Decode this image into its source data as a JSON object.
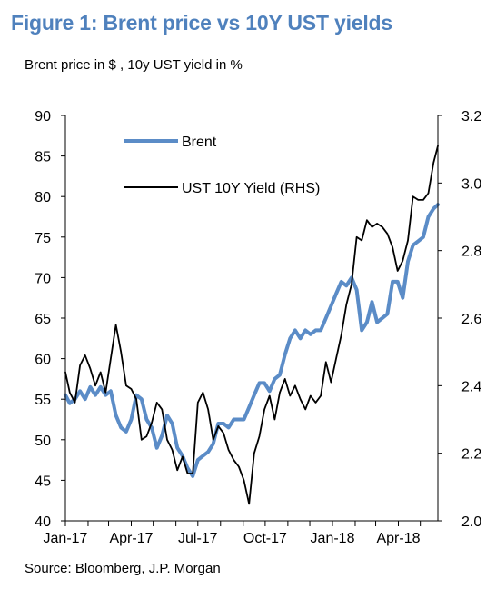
{
  "title": "Figure 1: Brent price vs 10Y UST yields",
  "subtitle": "Brent price in $ , 10y UST yield in %",
  "source": "Source: Bloomberg, J.P. Morgan",
  "chart_data": {
    "type": "line",
    "xlabel": "",
    "ylabel": "",
    "x_tick_labels": [
      "Jan-17",
      "Apr-17",
      "Jul-17",
      "Oct-17",
      "Jan-18",
      "Apr-18"
    ],
    "x_range": [
      "2017-01-01",
      "2018-05-25"
    ],
    "y_left": {
      "ticks": [
        40,
        45,
        50,
        55,
        60,
        65,
        70,
        75,
        80,
        85,
        90
      ],
      "range": [
        40,
        90
      ]
    },
    "y_right": {
      "ticks": [
        2.0,
        2.2,
        2.4,
        2.6,
        2.8,
        3.0,
        3.2
      ],
      "range": [
        2.0,
        3.2
      ]
    },
    "grid": false,
    "legend_position": "top-left",
    "series": [
      {
        "name": "Brent",
        "axis": "left",
        "color": "#5b8cc7",
        "points": [
          [
            "2017-01-01",
            55.5
          ],
          [
            "2017-01-07",
            54.5
          ],
          [
            "2017-01-14",
            55.0
          ],
          [
            "2017-01-21",
            56.0
          ],
          [
            "2017-01-28",
            55.0
          ],
          [
            "2017-02-04",
            56.5
          ],
          [
            "2017-02-11",
            55.5
          ],
          [
            "2017-02-18",
            56.5
          ],
          [
            "2017-02-25",
            55.5
          ],
          [
            "2017-03-04",
            56.0
          ],
          [
            "2017-03-11",
            53.0
          ],
          [
            "2017-03-18",
            51.5
          ],
          [
            "2017-03-25",
            51.0
          ],
          [
            "2017-04-01",
            52.5
          ],
          [
            "2017-04-08",
            55.5
          ],
          [
            "2017-04-15",
            55.0
          ],
          [
            "2017-04-22",
            52.5
          ],
          [
            "2017-04-29",
            51.5
          ],
          [
            "2017-05-06",
            49.0
          ],
          [
            "2017-05-13",
            50.5
          ],
          [
            "2017-05-20",
            53.0
          ],
          [
            "2017-05-27",
            52.0
          ],
          [
            "2017-06-03",
            49.0
          ],
          [
            "2017-06-10",
            48.0
          ],
          [
            "2017-06-17",
            46.5
          ],
          [
            "2017-06-24",
            45.5
          ],
          [
            "2017-07-01",
            47.5
          ],
          [
            "2017-07-08",
            48.0
          ],
          [
            "2017-07-15",
            48.5
          ],
          [
            "2017-07-22",
            49.5
          ],
          [
            "2017-07-29",
            52.0
          ],
          [
            "2017-08-05",
            52.0
          ],
          [
            "2017-08-12",
            51.5
          ],
          [
            "2017-08-19",
            52.5
          ],
          [
            "2017-08-26",
            52.5
          ],
          [
            "2017-09-02",
            52.5
          ],
          [
            "2017-09-09",
            54.0
          ],
          [
            "2017-09-16",
            55.5
          ],
          [
            "2017-09-23",
            57.0
          ],
          [
            "2017-09-30",
            57.0
          ],
          [
            "2017-10-07",
            56.0
          ],
          [
            "2017-10-14",
            57.5
          ],
          [
            "2017-10-21",
            58.0
          ],
          [
            "2017-10-28",
            60.5
          ],
          [
            "2017-11-04",
            62.5
          ],
          [
            "2017-11-11",
            63.5
          ],
          [
            "2017-11-18",
            62.5
          ],
          [
            "2017-11-25",
            63.5
          ],
          [
            "2017-12-02",
            63.0
          ],
          [
            "2017-12-09",
            63.5
          ],
          [
            "2017-12-16",
            63.5
          ],
          [
            "2017-12-23",
            65.0
          ],
          [
            "2017-12-30",
            66.5
          ],
          [
            "2018-01-06",
            68.0
          ],
          [
            "2018-01-13",
            69.5
          ],
          [
            "2018-01-20",
            69.0
          ],
          [
            "2018-01-27",
            70.0
          ],
          [
            "2018-02-03",
            68.5
          ],
          [
            "2018-02-10",
            63.5
          ],
          [
            "2018-02-17",
            64.5
          ],
          [
            "2018-02-24",
            67.0
          ],
          [
            "2018-03-03",
            64.5
          ],
          [
            "2018-03-10",
            65.0
          ],
          [
            "2018-03-17",
            65.5
          ],
          [
            "2018-03-24",
            69.5
          ],
          [
            "2018-03-31",
            69.5
          ],
          [
            "2018-04-07",
            67.5
          ],
          [
            "2018-04-14",
            72.0
          ],
          [
            "2018-04-21",
            74.0
          ],
          [
            "2018-04-28",
            74.5
          ],
          [
            "2018-05-05",
            75.0
          ],
          [
            "2018-05-12",
            77.5
          ],
          [
            "2018-05-19",
            78.5
          ],
          [
            "2018-05-25",
            79.0
          ]
        ]
      },
      {
        "name": "UST 10Y Yield (RHS)",
        "axis": "right",
        "color": "#000000",
        "points": [
          [
            "2017-01-01",
            2.44
          ],
          [
            "2017-01-07",
            2.38
          ],
          [
            "2017-01-14",
            2.35
          ],
          [
            "2017-01-21",
            2.46
          ],
          [
            "2017-01-28",
            2.49
          ],
          [
            "2017-02-04",
            2.45
          ],
          [
            "2017-02-11",
            2.4
          ],
          [
            "2017-02-18",
            2.44
          ],
          [
            "2017-02-25",
            2.38
          ],
          [
            "2017-03-04",
            2.48
          ],
          [
            "2017-03-11",
            2.58
          ],
          [
            "2017-03-18",
            2.5
          ],
          [
            "2017-03-25",
            2.4
          ],
          [
            "2017-04-01",
            2.39
          ],
          [
            "2017-04-08",
            2.36
          ],
          [
            "2017-04-15",
            2.24
          ],
          [
            "2017-04-22",
            2.25
          ],
          [
            "2017-04-29",
            2.29
          ],
          [
            "2017-05-06",
            2.35
          ],
          [
            "2017-05-13",
            2.33
          ],
          [
            "2017-05-20",
            2.24
          ],
          [
            "2017-05-27",
            2.21
          ],
          [
            "2017-06-03",
            2.15
          ],
          [
            "2017-06-10",
            2.19
          ],
          [
            "2017-06-17",
            2.14
          ],
          [
            "2017-06-24",
            2.14
          ],
          [
            "2017-07-01",
            2.35
          ],
          [
            "2017-07-08",
            2.38
          ],
          [
            "2017-07-15",
            2.33
          ],
          [
            "2017-07-22",
            2.24
          ],
          [
            "2017-07-29",
            2.28
          ],
          [
            "2017-08-05",
            2.26
          ],
          [
            "2017-08-12",
            2.21
          ],
          [
            "2017-08-19",
            2.18
          ],
          [
            "2017-08-26",
            2.16
          ],
          [
            "2017-09-02",
            2.12
          ],
          [
            "2017-09-09",
            2.05
          ],
          [
            "2017-09-16",
            2.2
          ],
          [
            "2017-09-23",
            2.25
          ],
          [
            "2017-09-30",
            2.33
          ],
          [
            "2017-10-07",
            2.37
          ],
          [
            "2017-10-14",
            2.3
          ],
          [
            "2017-10-21",
            2.38
          ],
          [
            "2017-10-28",
            2.42
          ],
          [
            "2017-11-04",
            2.37
          ],
          [
            "2017-11-11",
            2.4
          ],
          [
            "2017-11-18",
            2.36
          ],
          [
            "2017-11-25",
            2.33
          ],
          [
            "2017-12-02",
            2.37
          ],
          [
            "2017-12-09",
            2.35
          ],
          [
            "2017-12-16",
            2.37
          ],
          [
            "2017-12-23",
            2.47
          ],
          [
            "2017-12-30",
            2.41
          ],
          [
            "2018-01-06",
            2.48
          ],
          [
            "2018-01-13",
            2.55
          ],
          [
            "2018-01-20",
            2.64
          ],
          [
            "2018-01-27",
            2.7
          ],
          [
            "2018-02-03",
            2.84
          ],
          [
            "2018-02-10",
            2.83
          ],
          [
            "2018-02-17",
            2.89
          ],
          [
            "2018-02-24",
            2.87
          ],
          [
            "2018-03-03",
            2.88
          ],
          [
            "2018-03-10",
            2.87
          ],
          [
            "2018-03-17",
            2.85
          ],
          [
            "2018-03-24",
            2.81
          ],
          [
            "2018-03-31",
            2.74
          ],
          [
            "2018-04-07",
            2.77
          ],
          [
            "2018-04-14",
            2.83
          ],
          [
            "2018-04-21",
            2.96
          ],
          [
            "2018-04-28",
            2.95
          ],
          [
            "2018-05-05",
            2.95
          ],
          [
            "2018-05-12",
            2.97
          ],
          [
            "2018-05-19",
            3.06
          ],
          [
            "2018-05-25",
            3.11
          ]
        ]
      }
    ]
  }
}
